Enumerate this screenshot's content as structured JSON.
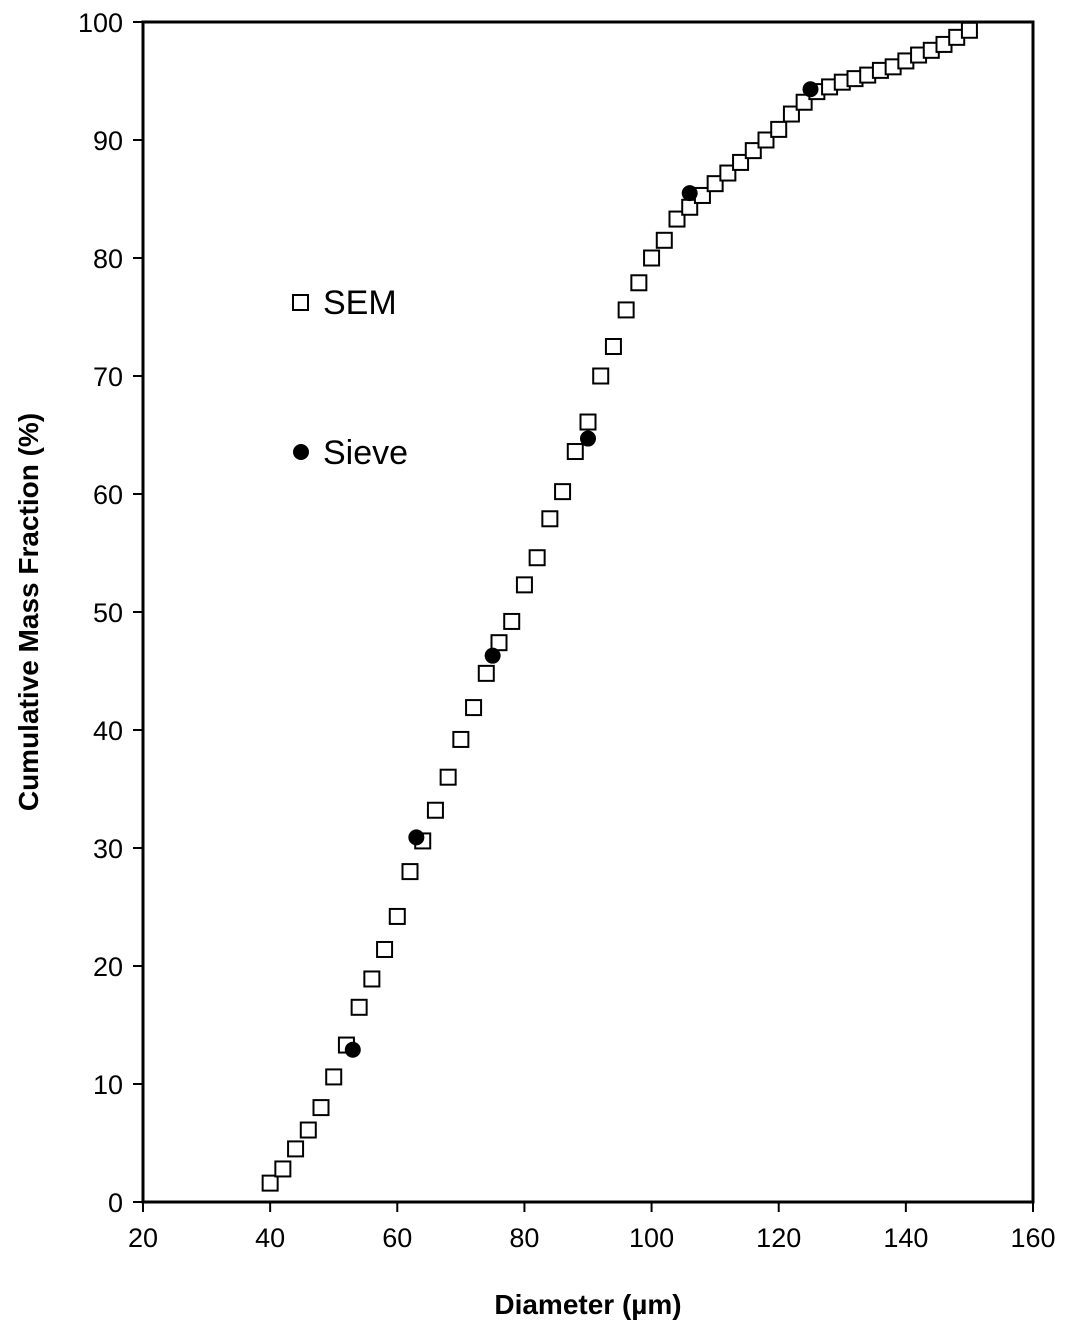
{
  "chart_data": {
    "type": "scatter",
    "title": "",
    "xlabel": "Diameter (µm)",
    "ylabel": "Cumulative Mass Fraction (%)",
    "xlim": [
      20,
      160
    ],
    "ylim": [
      0,
      100
    ],
    "xticks": [
      20,
      40,
      60,
      80,
      100,
      120,
      140,
      160
    ],
    "yticks": [
      0,
      10,
      20,
      30,
      40,
      50,
      60,
      70,
      80,
      90,
      100
    ],
    "grid": false,
    "legend_position": "left, upper-middle",
    "series": [
      {
        "name": "SEM",
        "marker": "open-square",
        "color": "#000000",
        "x": [
          40,
          42,
          44,
          46,
          48,
          50,
          52,
          54,
          56,
          58,
          60,
          62,
          64,
          66,
          68,
          70,
          72,
          74,
          76,
          78,
          80,
          82,
          84,
          86,
          88,
          90,
          92,
          94,
          96,
          98,
          100,
          102,
          104,
          106,
          108,
          110,
          112,
          114,
          116,
          118,
          120,
          122,
          124,
          126,
          128,
          130,
          132,
          134,
          136,
          138,
          140,
          142,
          144,
          146,
          148,
          150
        ],
        "y": [
          1.6,
          2.8,
          4.5,
          6.1,
          8.0,
          10.6,
          13.3,
          16.5,
          18.9,
          21.4,
          24.2,
          28.0,
          30.6,
          33.2,
          36.0,
          39.2,
          41.9,
          44.8,
          47.4,
          49.2,
          52.3,
          54.6,
          57.9,
          60.2,
          63.6,
          66.1,
          70.0,
          72.5,
          75.6,
          77.9,
          80.0,
          81.5,
          83.3,
          84.3,
          85.3,
          86.3,
          87.2,
          88.1,
          89.1,
          90.0,
          90.9,
          92.2,
          93.2,
          94.1,
          94.5,
          94.9,
          95.2,
          95.5,
          95.9,
          96.2,
          96.7,
          97.2,
          97.6,
          98.1,
          98.7,
          99.3
        ]
      },
      {
        "name": "Sieve",
        "marker": "filled-circle",
        "color": "#000000",
        "x": [
          53,
          63,
          75,
          90,
          106,
          125
        ],
        "y": [
          12.9,
          30.9,
          46.3,
          64.7,
          85.5,
          94.3
        ]
      }
    ]
  }
}
